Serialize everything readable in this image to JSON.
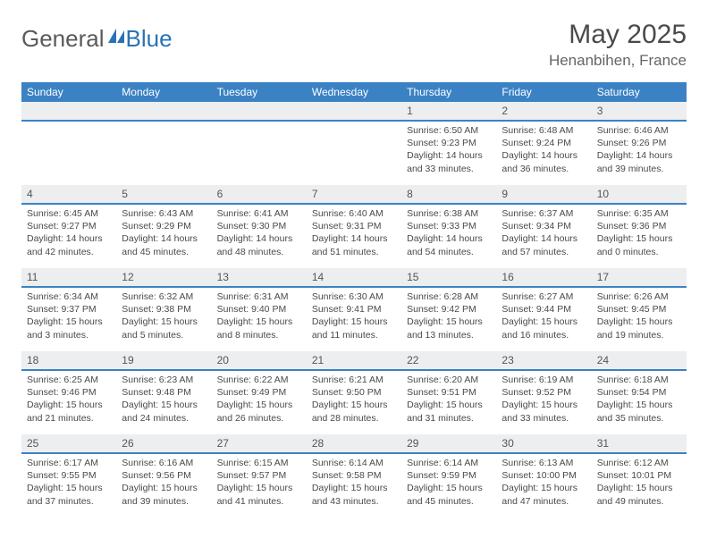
{
  "brand": {
    "name1": "General",
    "name2": "Blue"
  },
  "title": "May 2025",
  "location": "Henanbihen, France",
  "colors": {
    "header_bg": "#3b82c4",
    "daynum_bg": "#eceef0",
    "divider": "#3b82c4",
    "text": "#4a4a4a",
    "logo_gray": "#5a5a5a",
    "logo_blue": "#2a72b5"
  },
  "weekdays": [
    "Sunday",
    "Monday",
    "Tuesday",
    "Wednesday",
    "Thursday",
    "Friday",
    "Saturday"
  ],
  "weeks": [
    {
      "nums": [
        "",
        "",
        "",
        "",
        "1",
        "2",
        "3"
      ],
      "cells": [
        null,
        null,
        null,
        null,
        {
          "sunrise": "6:50 AM",
          "sunset": "9:23 PM",
          "daylight": "14 hours and 33 minutes."
        },
        {
          "sunrise": "6:48 AM",
          "sunset": "9:24 PM",
          "daylight": "14 hours and 36 minutes."
        },
        {
          "sunrise": "6:46 AM",
          "sunset": "9:26 PM",
          "daylight": "14 hours and 39 minutes."
        }
      ]
    },
    {
      "nums": [
        "4",
        "5",
        "6",
        "7",
        "8",
        "9",
        "10"
      ],
      "cells": [
        {
          "sunrise": "6:45 AM",
          "sunset": "9:27 PM",
          "daylight": "14 hours and 42 minutes."
        },
        {
          "sunrise": "6:43 AM",
          "sunset": "9:29 PM",
          "daylight": "14 hours and 45 minutes."
        },
        {
          "sunrise": "6:41 AM",
          "sunset": "9:30 PM",
          "daylight": "14 hours and 48 minutes."
        },
        {
          "sunrise": "6:40 AM",
          "sunset": "9:31 PM",
          "daylight": "14 hours and 51 minutes."
        },
        {
          "sunrise": "6:38 AM",
          "sunset": "9:33 PM",
          "daylight": "14 hours and 54 minutes."
        },
        {
          "sunrise": "6:37 AM",
          "sunset": "9:34 PM",
          "daylight": "14 hours and 57 minutes."
        },
        {
          "sunrise": "6:35 AM",
          "sunset": "9:36 PM",
          "daylight": "15 hours and 0 minutes."
        }
      ]
    },
    {
      "nums": [
        "11",
        "12",
        "13",
        "14",
        "15",
        "16",
        "17"
      ],
      "cells": [
        {
          "sunrise": "6:34 AM",
          "sunset": "9:37 PM",
          "daylight": "15 hours and 3 minutes."
        },
        {
          "sunrise": "6:32 AM",
          "sunset": "9:38 PM",
          "daylight": "15 hours and 5 minutes."
        },
        {
          "sunrise": "6:31 AM",
          "sunset": "9:40 PM",
          "daylight": "15 hours and 8 minutes."
        },
        {
          "sunrise": "6:30 AM",
          "sunset": "9:41 PM",
          "daylight": "15 hours and 11 minutes."
        },
        {
          "sunrise": "6:28 AM",
          "sunset": "9:42 PM",
          "daylight": "15 hours and 13 minutes."
        },
        {
          "sunrise": "6:27 AM",
          "sunset": "9:44 PM",
          "daylight": "15 hours and 16 minutes."
        },
        {
          "sunrise": "6:26 AM",
          "sunset": "9:45 PM",
          "daylight": "15 hours and 19 minutes."
        }
      ]
    },
    {
      "nums": [
        "18",
        "19",
        "20",
        "21",
        "22",
        "23",
        "24"
      ],
      "cells": [
        {
          "sunrise": "6:25 AM",
          "sunset": "9:46 PM",
          "daylight": "15 hours and 21 minutes."
        },
        {
          "sunrise": "6:23 AM",
          "sunset": "9:48 PM",
          "daylight": "15 hours and 24 minutes."
        },
        {
          "sunrise": "6:22 AM",
          "sunset": "9:49 PM",
          "daylight": "15 hours and 26 minutes."
        },
        {
          "sunrise": "6:21 AM",
          "sunset": "9:50 PM",
          "daylight": "15 hours and 28 minutes."
        },
        {
          "sunrise": "6:20 AM",
          "sunset": "9:51 PM",
          "daylight": "15 hours and 31 minutes."
        },
        {
          "sunrise": "6:19 AM",
          "sunset": "9:52 PM",
          "daylight": "15 hours and 33 minutes."
        },
        {
          "sunrise": "6:18 AM",
          "sunset": "9:54 PM",
          "daylight": "15 hours and 35 minutes."
        }
      ]
    },
    {
      "nums": [
        "25",
        "26",
        "27",
        "28",
        "29",
        "30",
        "31"
      ],
      "cells": [
        {
          "sunrise": "6:17 AM",
          "sunset": "9:55 PM",
          "daylight": "15 hours and 37 minutes."
        },
        {
          "sunrise": "6:16 AM",
          "sunset": "9:56 PM",
          "daylight": "15 hours and 39 minutes."
        },
        {
          "sunrise": "6:15 AM",
          "sunset": "9:57 PM",
          "daylight": "15 hours and 41 minutes."
        },
        {
          "sunrise": "6:14 AM",
          "sunset": "9:58 PM",
          "daylight": "15 hours and 43 minutes."
        },
        {
          "sunrise": "6:14 AM",
          "sunset": "9:59 PM",
          "daylight": "15 hours and 45 minutes."
        },
        {
          "sunrise": "6:13 AM",
          "sunset": "10:00 PM",
          "daylight": "15 hours and 47 minutes."
        },
        {
          "sunrise": "6:12 AM",
          "sunset": "10:01 PM",
          "daylight": "15 hours and 49 minutes."
        }
      ]
    }
  ],
  "labels": {
    "sunrise": "Sunrise:",
    "sunset": "Sunset:",
    "daylight": "Daylight:"
  }
}
